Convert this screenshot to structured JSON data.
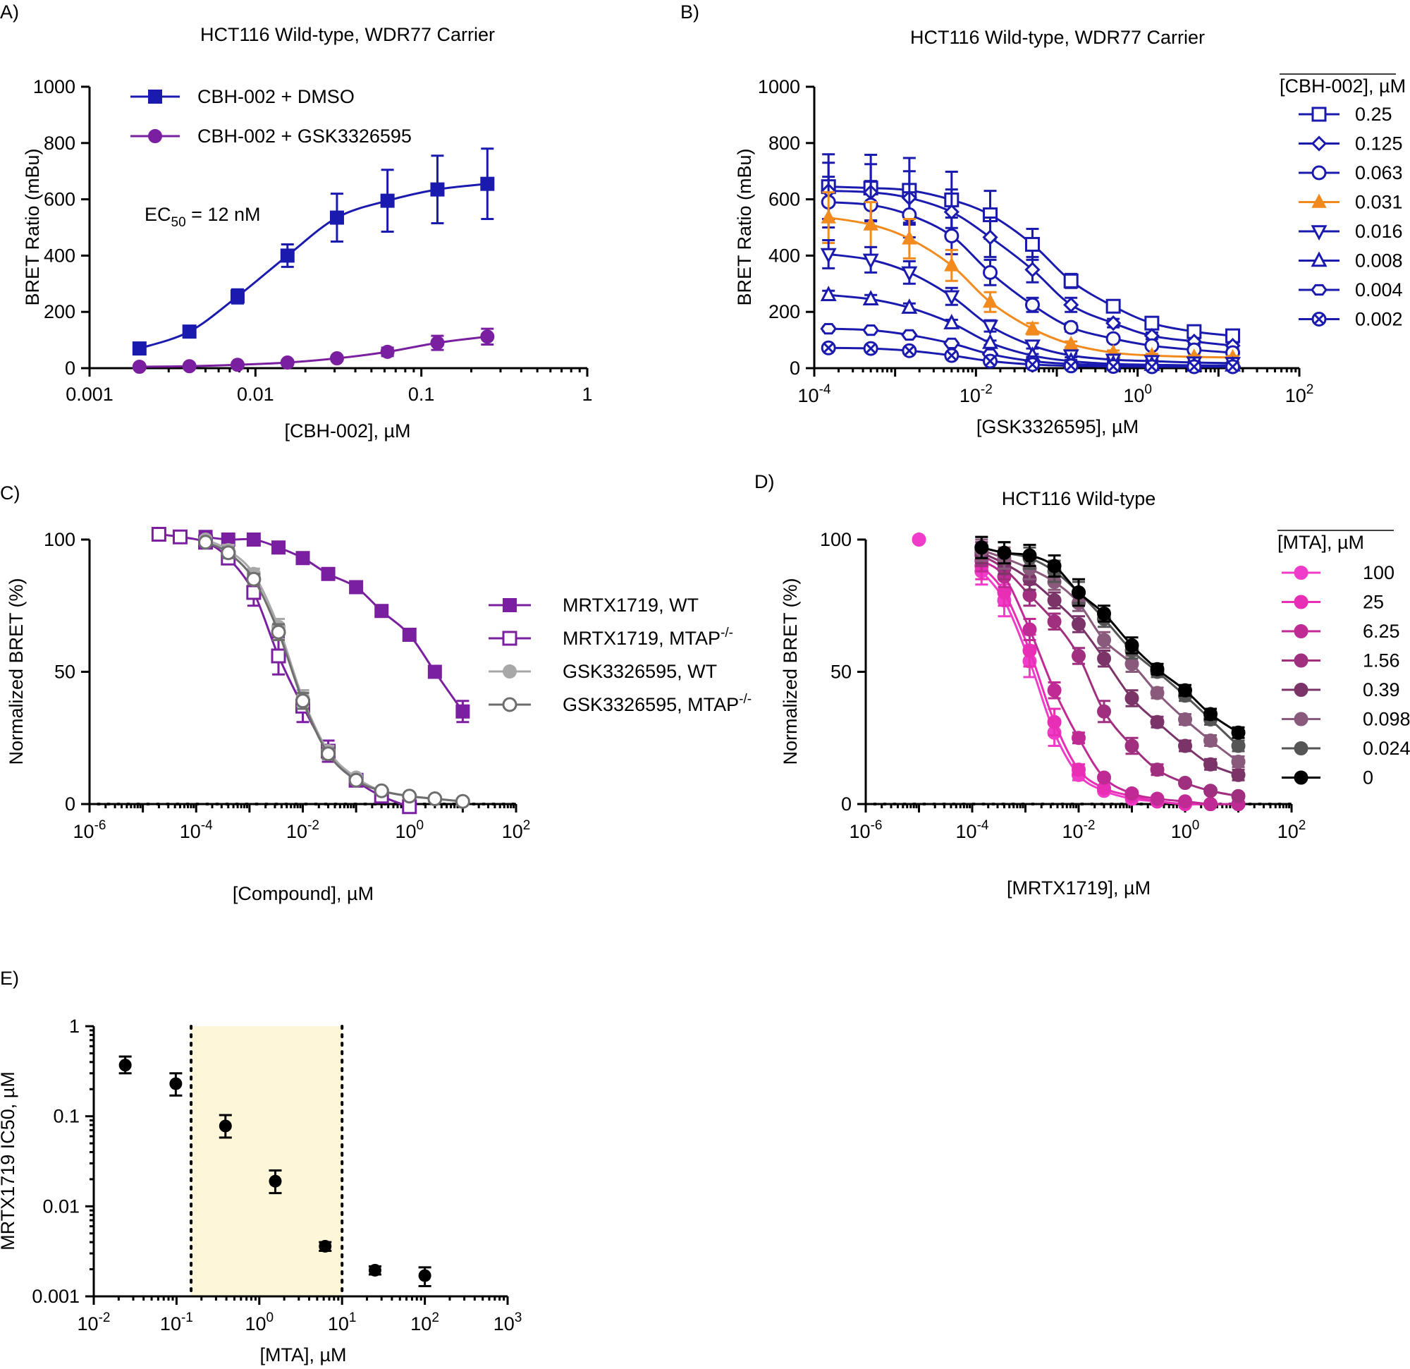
{
  "chart_data": [
    {
      "panel": "A)",
      "type": "line",
      "title": "HCT116  Wild-type, WDR77 Carrier",
      "xlabel": "[CBH-002], µM",
      "ylabel": "BRET Ratio (mBu)",
      "xscale": "log",
      "xlim": [
        0.001,
        1
      ],
      "ylim": [
        0,
        1000
      ],
      "xticks": [
        "0.001",
        "0.01",
        "0.1",
        "1"
      ],
      "yticks": [
        "0",
        "200",
        "400",
        "600",
        "800",
        "1000"
      ],
      "legend": "top-left",
      "annotation_pre": "EC",
      "annotation_sub": "50",
      "annotation_post": " = 12 nM",
      "x": [
        0.002,
        0.004,
        0.0078,
        0.0156,
        0.031,
        0.0625,
        0.125,
        0.25
      ],
      "series": [
        {
          "name": "CBH-002 + DMSO",
          "color": "#1a1aaf",
          "marker": "square",
          "filled": true,
          "y": [
            70,
            130,
            255,
            400,
            535,
            595,
            635,
            655
          ],
          "err": [
            15,
            20,
            25,
            40,
            85,
            110,
            120,
            125
          ]
        },
        {
          "name": "CBH-002 + GSK3326595",
          "color": "#7a1fa0",
          "marker": "circle",
          "filled": true,
          "y": [
            5,
            7,
            12,
            20,
            35,
            58,
            90,
            112
          ],
          "err": [
            3,
            4,
            5,
            6,
            8,
            15,
            25,
            28
          ]
        }
      ]
    },
    {
      "panel": "B)",
      "type": "line",
      "title": "HCT116 Wild-type,  WDR77 Carrier",
      "xlabel": "[GSK3326595], µM",
      "ylabel": "BRET Ratio (mBu)",
      "xscale": "log",
      "xlim": [
        0.0001,
        100
      ],
      "ylim": [
        0,
        1000
      ],
      "xticks_base": [
        "10",
        "10",
        "10",
        "10"
      ],
      "xticks_exp": [
        "-4",
        "-2",
        "0",
        "2"
      ],
      "yticks": [
        "0",
        "200",
        "400",
        "600",
        "800",
        "1000"
      ],
      "legend_title": "[CBH-002], µM",
      "legend": "right",
      "x": [
        0.00015,
        0.0005,
        0.0015,
        0.005,
        0.015,
        0.05,
        0.15,
        0.5,
        1.5,
        5,
        15
      ],
      "series": [
        {
          "name": "0.25",
          "color": "#1a1aaf",
          "marker": "square",
          "filled": false,
          "y": [
            645,
            640,
            632,
            598,
            545,
            440,
            310,
            220,
            160,
            130,
            115
          ],
          "err": [
            115,
            118,
            115,
            100,
            85,
            55,
            25,
            15,
            12,
            10,
            10
          ]
        },
        {
          "name": "0.125",
          "color": "#1a1aaf",
          "marker": "diamond",
          "filled": false,
          "y": [
            630,
            625,
            605,
            555,
            465,
            350,
            225,
            160,
            115,
            95,
            80
          ],
          "err": [
            100,
            100,
            95,
            80,
            70,
            45,
            25,
            15,
            12,
            10,
            8
          ]
        },
        {
          "name": "0.063",
          "color": "#1a1aaf",
          "marker": "circle",
          "filled": false,
          "y": [
            590,
            580,
            545,
            470,
            340,
            225,
            145,
            105,
            80,
            65,
            55
          ],
          "err": [
            90,
            85,
            80,
            65,
            45,
            25,
            15,
            10,
            8,
            8,
            6
          ]
        },
        {
          "name": "0.031",
          "color": "#f28a1e",
          "marker": "triangle-up",
          "filled": true,
          "y": [
            535,
            510,
            460,
            365,
            235,
            140,
            85,
            55,
            45,
            40,
            38
          ],
          "err": [
            90,
            80,
            70,
            55,
            35,
            20,
            10,
            8,
            6,
            5,
            5
          ]
        },
        {
          "name": "0.016",
          "color": "#1a1aaf",
          "marker": "triangle-down",
          "filled": false,
          "y": [
            405,
            385,
            340,
            255,
            150,
            80,
            45,
            30,
            25,
            20,
            18
          ],
          "err": [
            50,
            45,
            40,
            30,
            20,
            10,
            6,
            5,
            4,
            4,
            3
          ]
        },
        {
          "name": "0.008",
          "color": "#1a1aaf",
          "marker": "triangle-up",
          "filled": false,
          "y": [
            260,
            245,
            215,
            160,
            90,
            45,
            25,
            15,
            12,
            10,
            10
          ],
          "err": [
            15,
            15,
            15,
            12,
            8,
            5,
            4,
            3,
            3,
            3,
            3
          ]
        },
        {
          "name": "0.004",
          "color": "#1a1aaf",
          "marker": "hexagon",
          "filled": false,
          "y": [
            140,
            135,
            118,
            88,
            50,
            25,
            15,
            10,
            8,
            7,
            6
          ],
          "err": [
            8,
            8,
            7,
            6,
            5,
            3,
            3,
            2,
            2,
            2,
            2
          ]
        },
        {
          "name": "0.002",
          "color": "#1a1aaf",
          "marker": "circle-x",
          "filled": false,
          "y": [
            72,
            70,
            62,
            45,
            25,
            13,
            8,
            6,
            5,
            5,
            5
          ],
          "err": [
            5,
            5,
            5,
            4,
            3,
            2,
            2,
            2,
            2,
            2,
            2
          ]
        }
      ]
    },
    {
      "panel": "C)",
      "type": "line",
      "title": "",
      "xlabel": "[Compound], µM",
      "ylabel": "Normalized BRET (%)",
      "xscale": "log",
      "xlim": [
        1e-06,
        100
      ],
      "ylim": [
        0,
        100
      ],
      "xticks_base": [
        "10",
        "10",
        "10",
        "10",
        "10"
      ],
      "xticks_exp": [
        "-6",
        "-4",
        "-2",
        "0",
        "2"
      ],
      "yticks": [
        "0",
        "50",
        "100"
      ],
      "legend": "right",
      "x": [
        2e-05,
        5e-05,
        0.00015,
        0.0005,
        0.0015,
        0.005,
        0.015,
        0.05,
        0.15,
        0.5,
        1.5,
        5,
        15
      ],
      "series": [
        {
          "name": "MRTX1719, WT",
          "color": "#7a1fa0",
          "marker": "square",
          "filled": true,
          "x": [
            0.00015,
            0.0004,
            0.0012,
            0.0035,
            0.01,
            0.03,
            0.1,
            0.3,
            1,
            3,
            10
          ],
          "y": [
            101,
            100,
            100,
            97,
            93,
            87,
            82,
            73,
            64,
            50,
            35
          ],
          "err": [
            1,
            1,
            1,
            1,
            1,
            1,
            1,
            1,
            2,
            2,
            4
          ]
        },
        {
          "name": "MRTX1719, MTAP",
          "name_sup": "-/-",
          "color": "#7a1fa0",
          "marker": "square",
          "filled": false,
          "x": [
            2e-05,
            5e-05,
            0.00015,
            0.0004,
            0.0012,
            0.0035,
            0.01,
            0.03,
            0.1,
            0.3,
            1
          ],
          "y": [
            102,
            101,
            99,
            93,
            80,
            56,
            37,
            20,
            9,
            3,
            -1
          ],
          "err": [
            1,
            1,
            1,
            2,
            5,
            7,
            6,
            4,
            2,
            1,
            1
          ]
        },
        {
          "name": "GSK3326595, WT",
          "color": "#a8a8a8",
          "marker": "circle",
          "filled": true,
          "x": [
            0.00015,
            0.0004,
            0.0012,
            0.0035,
            0.01,
            0.03,
            0.1,
            0.3,
            1,
            3,
            10
          ],
          "y": [
            100,
            96,
            87,
            67,
            40,
            20,
            10,
            5,
            3,
            2,
            1
          ],
          "err": [
            1,
            2,
            2,
            3,
            3,
            2,
            1,
            1,
            1,
            1,
            1
          ]
        },
        {
          "name": "GSK3326595, MTAP",
          "name_sup": "-/-",
          "color": "#6e6e6e",
          "marker": "circle",
          "filled": false,
          "x": [
            0.00015,
            0.0004,
            0.0012,
            0.0035,
            0.01,
            0.03,
            0.1,
            0.3,
            1,
            3,
            10
          ],
          "y": [
            99,
            95,
            85,
            65,
            39,
            19,
            9,
            5,
            3,
            2,
            1
          ],
          "err": [
            1,
            2,
            2,
            3,
            3,
            2,
            1,
            1,
            1,
            1,
            1
          ]
        }
      ]
    },
    {
      "panel": "D)",
      "type": "line",
      "title": "HCT116 Wild-type",
      "xlabel": "[MRTX1719], µM",
      "ylabel": "Normalized BRET (%)",
      "xscale": "log",
      "xlim": [
        1e-06,
        100
      ],
      "ylim": [
        0,
        100
      ],
      "xticks_base": [
        "10",
        "10",
        "10",
        "10",
        "10"
      ],
      "xticks_exp": [
        "-6",
        "-4",
        "-2",
        "0",
        "2"
      ],
      "yticks": [
        "0",
        "50",
        "100"
      ],
      "legend_title": "[MTA], µM",
      "legend": "right",
      "x": [
        0.00015,
        0.0004,
        0.0012,
        0.0035,
        0.01,
        0.03,
        0.1,
        0.3,
        1,
        3,
        10
      ],
      "series": [
        {
          "name": "100",
          "color": "#f03cc8",
          "y": [
            88,
            77,
            54,
            27,
            11,
            5,
            2,
            1,
            0,
            0,
            0
          ],
          "err": [
            5,
            6,
            6,
            5,
            2,
            1,
            1,
            0,
            0,
            0,
            0
          ],
          "extra_x": 1e-05,
          "extra_y": 100
        },
        {
          "name": "25",
          "color": "#e72eb5",
          "y": [
            90,
            80,
            58,
            31,
            13,
            6,
            3,
            1,
            0,
            0,
            0
          ],
          "err": [
            5,
            5,
            6,
            5,
            2,
            1,
            1,
            0,
            0,
            0,
            0
          ]
        },
        {
          "name": "6.25",
          "color": "#c02a95",
          "y": [
            92,
            86,
            66,
            43,
            25,
            10,
            4,
            2,
            1,
            0,
            0
          ],
          "err": [
            4,
            4,
            4,
            3,
            2,
            1,
            1,
            0,
            0,
            0,
            0
          ]
        },
        {
          "name": "1.56",
          "color": "#a0307f",
          "y": [
            94,
            89,
            79,
            69,
            56,
            35,
            22,
            13,
            8,
            5,
            3
          ],
          "err": [
            4,
            4,
            4,
            3,
            3,
            4,
            3,
            2,
            1,
            1,
            1
          ]
        },
        {
          "name": "0.39",
          "color": "#7b3468",
          "y": [
            95,
            91,
            85,
            77,
            68,
            55,
            40,
            31,
            22,
            15,
            11
          ],
          "err": [
            4,
            4,
            4,
            3,
            3,
            3,
            3,
            2,
            2,
            2,
            2
          ]
        },
        {
          "name": "0.098",
          "color": "#8a5a7c",
          "y": [
            96,
            93,
            89,
            84,
            76,
            62,
            53,
            42,
            32,
            24,
            16
          ],
          "err": [
            4,
            4,
            4,
            3,
            3,
            3,
            3,
            2,
            2,
            2,
            2
          ]
        },
        {
          "name": "0.024",
          "color": "#555555",
          "y": [
            97,
            95,
            93,
            88,
            80,
            70,
            58,
            50,
            41,
            32,
            22
          ],
          "err": [
            4,
            4,
            4,
            4,
            4,
            3,
            3,
            2,
            2,
            2,
            2
          ]
        },
        {
          "name": "0",
          "color": "#000000",
          "y": [
            97,
            95,
            94,
            90,
            80,
            72,
            60,
            51,
            43,
            34,
            27
          ],
          "err": [
            4,
            4,
            4,
            4,
            5,
            3,
            3,
            2,
            2,
            2,
            2
          ]
        }
      ]
    },
    {
      "panel": "E)",
      "type": "scatter",
      "title": "",
      "xlabel": "[MTA], µM",
      "ylabel": "MRTX1719 IC50, µM",
      "xscale": "log",
      "yscale": "log",
      "xlim": [
        0.01,
        1000
      ],
      "ylim": [
        0.001,
        1
      ],
      "xticks_base": [
        "10",
        "10",
        "10",
        "10",
        "10",
        "10"
      ],
      "xticks_exp": [
        "-2",
        "-1",
        "0",
        "1",
        "2",
        "3"
      ],
      "yticks": [
        "0.001",
        "0.01",
        "0.1",
        "1"
      ],
      "shaded_region": [
        0.15,
        10
      ],
      "shade_color": "#fdf6d8",
      "x": [
        0.024,
        0.098,
        0.39,
        1.56,
        6.25,
        25,
        100
      ],
      "y": [
        0.37,
        0.23,
        0.078,
        0.019,
        0.0036,
        0.00195,
        0.0017
      ],
      "err_lo": [
        0.07,
        0.06,
        0.02,
        0.005,
        0.0004,
        0.0002,
        0.0004
      ],
      "err_hi": [
        0.09,
        0.07,
        0.025,
        0.006,
        0.0004,
        0.0002,
        0.0004
      ]
    }
  ]
}
